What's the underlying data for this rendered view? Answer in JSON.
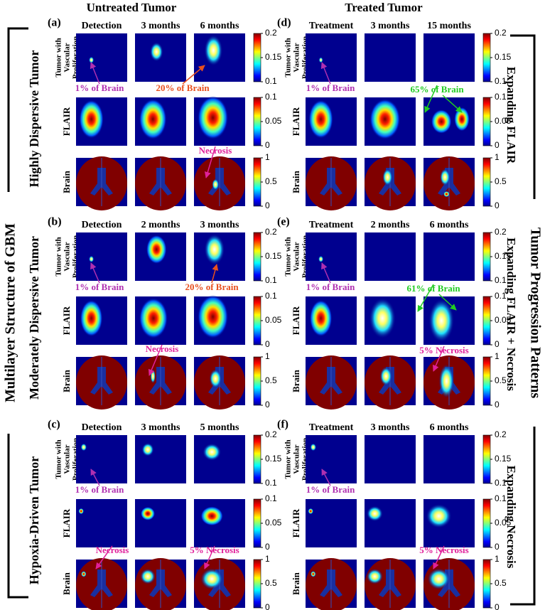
{
  "titles": {
    "left": "Untreated Tumor",
    "right": "Treated Tumor"
  },
  "side_labels": {
    "left": "Multilayer Structure of GBM",
    "right": "Tumor Progression Patterns"
  },
  "tumor_types": [
    "Highly Dispersive Tumor",
    "Moderately Dispersive Tumor",
    "Hypoxia-Driven Tumor"
  ],
  "patterns": [
    "Expanding FLAIR",
    "Expanding FLAIR + Necrosis",
    "Expanding Necrosis"
  ],
  "row_labels": [
    [
      "Tumor with",
      "Vascular",
      "Proliferation"
    ],
    [
      "FLAIR"
    ],
    [
      "Brain"
    ]
  ],
  "colorbars": [
    {
      "lim": [
        0.1,
        0.2
      ],
      "ticks": [
        0.1,
        0.15,
        0.2
      ]
    },
    {
      "lim": [
        0,
        0.1
      ],
      "ticks": [
        0,
        0.05,
        0.1
      ]
    },
    {
      "lim": [
        0,
        1
      ],
      "ticks": [
        0,
        0.5,
        1
      ]
    }
  ],
  "panels": [
    {
      "label": "(a)",
      "columns": [
        "Detection",
        "3 months",
        "6 months"
      ],
      "annotations": [
        "1% of Brain",
        "20% of Brain",
        "Necrosis"
      ]
    },
    {
      "label": "(b)",
      "columns": [
        "Detection",
        "2 months",
        "3 months"
      ],
      "annotations": [
        "1% of Brain",
        "20% of Brain",
        "Necrosis"
      ]
    },
    {
      "label": "(c)",
      "columns": [
        "Detection",
        "3 months",
        "5 months"
      ],
      "annotations": [
        "1% of Brain",
        "Necrosis",
        "5% Necrosis"
      ]
    },
    {
      "label": "(d)",
      "columns": [
        "Treatment",
        "3 months",
        "15 months"
      ],
      "annotations": [
        "1% of Brain",
        "65% of Brain"
      ]
    },
    {
      "label": "(e)",
      "columns": [
        "Treatment",
        "2 months",
        "6 months"
      ],
      "annotations": [
        "1% of Brain",
        "61% of Brain",
        "5% Necrosis"
      ]
    },
    {
      "label": "(f)",
      "columns": [
        "Treatment",
        "3 months",
        "6 months"
      ],
      "annotations": [
        "1% of Brain",
        "5% Necrosis"
      ]
    }
  ]
}
